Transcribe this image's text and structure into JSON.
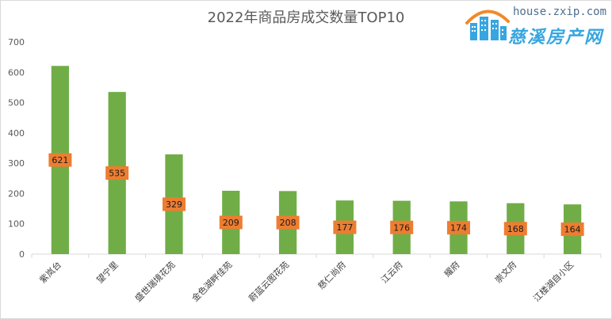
{
  "chart_data": {
    "type": "bar",
    "title": "2022年商品房成交数量TOP10",
    "xlabel": "",
    "ylabel": "",
    "categories": [
      "紫岚台",
      "望宁里",
      "盛世瑞境花苑",
      "金色湖畔佳苑",
      "蔚蓝云图花苑",
      "慈仁尚府",
      "江云府",
      "耀府",
      "崇文府",
      "江楼湖自小区"
    ],
    "series": [
      {
        "values": [
          621,
          535,
          329,
          209,
          208,
          177,
          176,
          174,
          168,
          164
        ]
      }
    ],
    "ylim": [
      0,
      700
    ],
    "yticks": [
      0,
      100,
      200,
      300,
      400,
      500,
      600,
      700
    ],
    "grid": false,
    "legend": "none",
    "colors": {
      "bar": "#70ad47",
      "label_bg": "#ed7d31",
      "axis": "#d9d9d9"
    }
  },
  "watermark": {
    "url": "house.zxip.com",
    "brand": "慈溪房产网"
  }
}
